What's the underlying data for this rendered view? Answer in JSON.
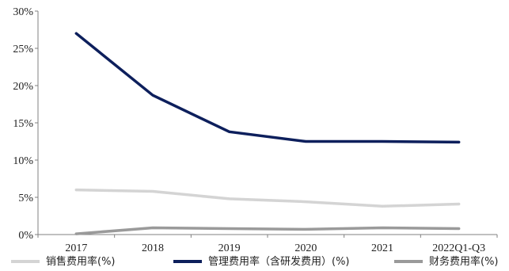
{
  "chart_data": {
    "type": "line",
    "x": [
      "2017",
      "2018",
      "2019",
      "2020",
      "2021",
      "2022Q1-Q3"
    ],
    "ylim": [
      0,
      30
    ],
    "yticks": [
      0,
      5,
      10,
      15,
      20,
      25,
      30
    ],
    "ytick_labels": [
      "0%",
      "5%",
      "10%",
      "15%",
      "20%",
      "25%",
      "30%"
    ],
    "grid": false,
    "legend_position": "bottom",
    "series": [
      {
        "name": "销售费用率(%)",
        "color": "#d4d4d4",
        "values": [
          6.0,
          5.8,
          4.8,
          4.4,
          3.8,
          4.1
        ]
      },
      {
        "name": "管理费用率（含研发费用）(%)",
        "color": "#0d1f5c",
        "values": [
          27.0,
          18.7,
          13.8,
          12.5,
          12.5,
          12.4
        ]
      },
      {
        "name": "财务费用率(%)",
        "color": "#9a9a9a",
        "values": [
          0.1,
          0.9,
          0.8,
          0.7,
          0.9,
          0.8
        ]
      }
    ]
  }
}
